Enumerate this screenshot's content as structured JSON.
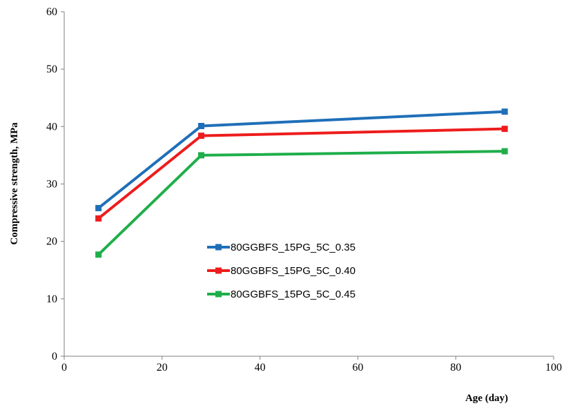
{
  "chart_data": {
    "type": "line",
    "title": "",
    "xlabel": "Age (day)",
    "ylabel": "Compressive strength, MPa",
    "xlim": [
      0,
      100
    ],
    "ylim": [
      0,
      60
    ],
    "xticks": [
      0,
      20,
      40,
      60,
      80,
      100
    ],
    "yticks": [
      0,
      10,
      20,
      30,
      40,
      50,
      60
    ],
    "grid": false,
    "legend_position": "center",
    "x": [
      7,
      28,
      90
    ],
    "series": [
      {
        "name": "80GGBFS_15PG_5C_0.35",
        "color": "#1f6fb8",
        "values": [
          25.8,
          40.1,
          42.6
        ]
      },
      {
        "name": "80GGBFS_15PG_5C_0.40",
        "color": "#ee1c1c",
        "values": [
          24.0,
          38.4,
          39.6
        ]
      },
      {
        "name": "80GGBFS_15PG_5C_0.45",
        "color": "#1fae4a",
        "values": [
          17.7,
          35.0,
          35.7
        ]
      }
    ]
  }
}
